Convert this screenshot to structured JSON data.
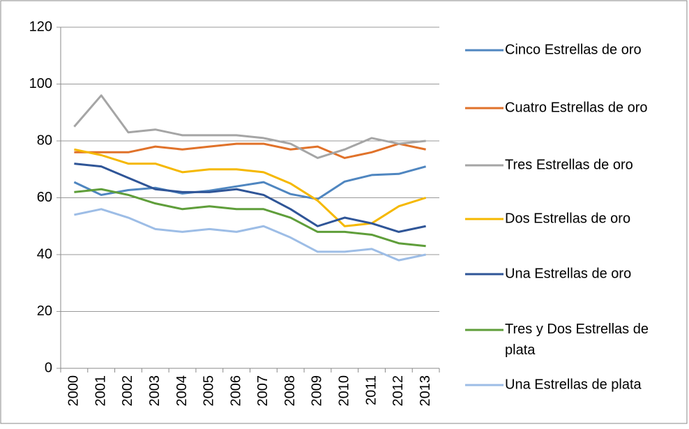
{
  "chart_data": {
    "type": "line",
    "categories": [
      "2000",
      "2001",
      "2002",
      "2003",
      "2004",
      "2005",
      "2006",
      "2007",
      "2008",
      "2009",
      "2010",
      "2011",
      "2012",
      "2013"
    ],
    "ylim": [
      0,
      120
    ],
    "yticks": [
      0,
      20,
      40,
      60,
      80,
      100,
      120
    ],
    "grid": true,
    "legend": "right",
    "series": [
      {
        "name": "Cinco Estrellas de oro",
        "color": "#4f86c0",
        "values": [
          65.5,
          61,
          62.7,
          63.5,
          61.5,
          62.5,
          64,
          65.5,
          61.3,
          59.5,
          65.7,
          68,
          68.4,
          71
        ]
      },
      {
        "name": "Cuatro Estrellas de oro",
        "color": "#e0722a",
        "values": [
          76,
          76,
          76,
          78,
          77,
          78,
          79,
          79,
          77,
          78,
          74,
          76,
          79,
          77
        ]
      },
      {
        "name": "Tres Estrellas de oro",
        "color": "#a5a5a5",
        "values": [
          85,
          96,
          83,
          84,
          82,
          82,
          82,
          81,
          79,
          74,
          77,
          81,
          79,
          80
        ]
      },
      {
        "name": "Dos Estrellas de oro",
        "color": "#f5b800",
        "values": [
          77,
          75,
          72,
          72,
          69,
          70,
          70,
          69,
          65,
          59,
          50,
          51,
          57,
          60
        ]
      },
      {
        "name": "Una Estrellas de oro",
        "color": "#2f5597",
        "values": [
          72,
          71,
          67,
          63,
          62,
          62,
          63,
          61,
          56,
          50,
          53,
          51,
          48,
          50
        ]
      },
      {
        "name": "Tres y Dos Estrellas de plata",
        "color": "#5f9e3a",
        "values": [
          62,
          63,
          61,
          58,
          56,
          57,
          56,
          56,
          53,
          48,
          48,
          47,
          44,
          43
        ]
      },
      {
        "name": "Una Estrellas de plata",
        "color": "#9dbde6",
        "values": [
          54,
          56,
          53,
          49,
          48,
          49,
          48,
          50,
          46,
          41,
          41,
          42,
          38,
          40
        ]
      }
    ]
  }
}
